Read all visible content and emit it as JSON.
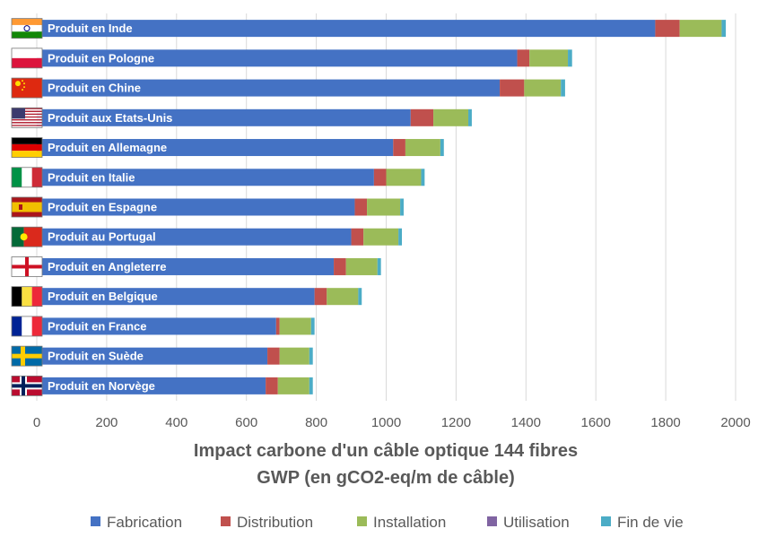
{
  "chart_data": {
    "type": "bar",
    "orientation": "horizontal",
    "stacked": true,
    "title": [
      "Impact carbone d'un câble optique 144 fibres",
      "GWP (en gCO2-eq/m de câble)"
    ],
    "xlabel": "",
    "ylabel": "",
    "xlim": [
      0,
      2000
    ],
    "xticks": [
      0,
      200,
      400,
      600,
      800,
      1000,
      1200,
      1400,
      1600,
      1800,
      2000
    ],
    "grid": true,
    "legend_position": "bottom",
    "categories": [
      "Produit en Inde",
      "Produit en Pologne",
      "Produit en Chine",
      "Produit aux Etats-Unis",
      "Produit en Allemagne",
      "Produit en Italie",
      "Produit en Espagne",
      "Produit au Portugal",
      "Produit en Angleterre",
      "Produit en Belgique",
      "Produit en France",
      "Produit en Suède",
      "Produit en Norvège"
    ],
    "category_flags": [
      "india-flag",
      "poland-flag",
      "china-flag",
      "usa-flag",
      "germany-flag",
      "italy-flag",
      "spain-flag",
      "portugal-flag",
      "england-flag",
      "belgium-flag",
      "france-flag",
      "sweden-flag",
      "norway-flag"
    ],
    "series": [
      {
        "name": "Fabrication",
        "color": "#4472C4",
        "values": [
          1770,
          1375,
          1325,
          1070,
          1020,
          965,
          910,
          900,
          850,
          795,
          685,
          660,
          655
        ]
      },
      {
        "name": "Distribution",
        "color": "#C0504D",
        "values": [
          70,
          35,
          70,
          65,
          35,
          35,
          35,
          35,
          35,
          35,
          10,
          35,
          35
        ]
      },
      {
        "name": "Installation",
        "color": "#9BBB59",
        "values": [
          120,
          110,
          105,
          100,
          100,
          100,
          95,
          100,
          90,
          90,
          90,
          85,
          90
        ]
      },
      {
        "name": "Utilisation",
        "color": "#8064A2",
        "values": [
          0,
          0,
          0,
          0,
          0,
          0,
          0,
          0,
          0,
          0,
          0,
          0,
          0
        ]
      },
      {
        "name": "Fin de vie",
        "color": "#4BACC6",
        "values": [
          12,
          12,
          12,
          10,
          10,
          10,
          10,
          10,
          10,
          10,
          10,
          10,
          10
        ]
      }
    ]
  }
}
